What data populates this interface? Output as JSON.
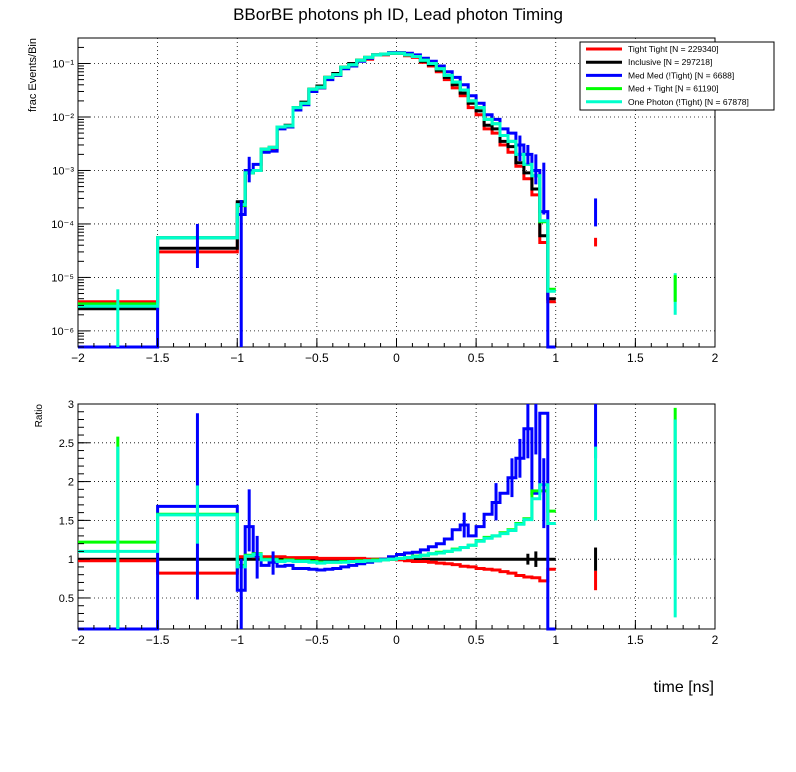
{
  "title": "BBorBE photons ph ID, Lead photon Timing",
  "xlabel": "time [ns]",
  "colors": {
    "tight_tight": "#ff0000",
    "inclusive": "#000000",
    "med_med": "#0000ff",
    "med_tight": "#00ff00",
    "one_photon": "#00ffcc"
  },
  "chart_data": [
    {
      "type": "line",
      "name": "top",
      "ylabel": "frac Events/Bin",
      "yscale": "log",
      "xlim": [
        -2,
        2
      ],
      "ylim": [
        5e-07,
        0.3
      ],
      "grid": true,
      "xticks": [
        "−2",
        "−1.5",
        "−1",
        "−0.5",
        "0",
        "0.5",
        "1",
        "1.5",
        "2"
      ],
      "yticks": [
        {
          "v": 1e-06,
          "label": "10⁻⁶"
        },
        {
          "v": 1e-05,
          "label": "10⁻⁵"
        },
        {
          "v": 0.0001,
          "label": "10⁻⁴"
        },
        {
          "v": 0.001,
          "label": "10⁻³"
        },
        {
          "v": 0.01,
          "label": "10⁻²"
        },
        {
          "v": 0.1,
          "label": "10⁻¹"
        }
      ],
      "legend_position": "top-right",
      "bin_edges": [
        -2,
        -1.5,
        -1,
        -0.95,
        -0.9,
        -0.85,
        -0.8,
        -0.75,
        -0.7,
        -0.65,
        -0.6,
        -0.55,
        -0.5,
        -0.45,
        -0.4,
        -0.35,
        -0.3,
        -0.25,
        -0.2,
        -0.15,
        -0.1,
        -0.05,
        0,
        0.05,
        0.1,
        0.15,
        0.2,
        0.25,
        0.3,
        0.35,
        0.4,
        0.45,
        0.5,
        0.55,
        0.6,
        0.65,
        0.7,
        0.75,
        0.8,
        0.85,
        0.9,
        0.95,
        1,
        1.5,
        2
      ],
      "series": [
        {
          "name": "Tight Tight [N = 229340]",
          "color": "#ff0000",
          "values": [
            3.5e-06,
            3e-05,
            0.00025,
            0.0009,
            0.001,
            0.0024,
            0.0025,
            0.0065,
            0.0065,
            0.015,
            0.018,
            0.033,
            0.035,
            0.055,
            0.06,
            0.085,
            0.09,
            0.115,
            0.12,
            0.145,
            0.145,
            0.155,
            0.155,
            0.14,
            0.13,
            0.105,
            0.09,
            0.07,
            0.05,
            0.035,
            0.025,
            0.015,
            0.011,
            0.006,
            0.005,
            0.003,
            0.0022,
            0.0012,
            0.0007,
            0.00035,
            4.5e-05,
            3.5e-06
          ]
        },
        {
          "name": "Inclusive [N = 297218]",
          "color": "#000000",
          "values": [
            2.6e-06,
            3.5e-05,
            0.00026,
            0.0009,
            0.001,
            0.0025,
            0.0027,
            0.0065,
            0.007,
            0.015,
            0.019,
            0.033,
            0.038,
            0.055,
            0.065,
            0.085,
            0.1,
            0.115,
            0.13,
            0.145,
            0.15,
            0.155,
            0.155,
            0.145,
            0.135,
            0.11,
            0.095,
            0.075,
            0.055,
            0.04,
            0.028,
            0.018,
            0.013,
            0.007,
            0.006,
            0.0035,
            0.0028,
            0.0014,
            0.0009,
            0.00045,
            6e-05,
            4e-06
          ]
        },
        {
          "name": "Med Med (!Tight) [N = 6688]",
          "color": "#0000ff",
          "values": [
            5e-07,
            5.5e-05,
            0.00015,
            0.001,
            0.0013,
            0.0022,
            0.0023,
            0.006,
            0.0065,
            0.0135,
            0.017,
            0.03,
            0.035,
            0.05,
            0.06,
            0.08,
            0.09,
            0.11,
            0.125,
            0.145,
            0.15,
            0.16,
            0.16,
            0.155,
            0.145,
            0.125,
            0.11,
            0.09,
            0.07,
            0.055,
            0.04,
            0.025,
            0.018,
            0.011,
            0.009,
            0.006,
            0.005,
            0.003,
            0.002,
            0.001,
            0.00017,
            5e-07
          ]
        },
        {
          "name": "Med + Tight [N = 61190]",
          "color": "#00ff00",
          "values": [
            3.2e-06,
            5.5e-05,
            0.00022,
            0.0009,
            0.001,
            0.0025,
            0.0027,
            0.0065,
            0.0068,
            0.015,
            0.018,
            0.033,
            0.036,
            0.055,
            0.062,
            0.085,
            0.095,
            0.115,
            0.13,
            0.145,
            0.15,
            0.155,
            0.155,
            0.145,
            0.135,
            0.115,
            0.1,
            0.08,
            0.06,
            0.045,
            0.032,
            0.02,
            0.015,
            0.009,
            0.0075,
            0.0045,
            0.0035,
            0.002,
            0.0013,
            0.0008,
            0.00011,
            6e-06
          ]
        },
        {
          "name": "One Photon (!Tight) [N = 67878]",
          "color": "#00ffcc",
          "values": [
            2.9e-06,
            5.5e-05,
            0.00023,
            0.0009,
            0.001,
            0.0025,
            0.0027,
            0.0065,
            0.0068,
            0.015,
            0.018,
            0.033,
            0.036,
            0.055,
            0.062,
            0.085,
            0.095,
            0.115,
            0.13,
            0.145,
            0.15,
            0.155,
            0.155,
            0.145,
            0.135,
            0.115,
            0.1,
            0.08,
            0.06,
            0.045,
            0.032,
            0.02,
            0.015,
            0.009,
            0.0075,
            0.0045,
            0.0035,
            0.002,
            0.0013,
            0.0008,
            0.000115,
            5.5e-06
          ]
        }
      ],
      "error_bars": [
        {
          "series": 2,
          "x": -1.25,
          "lo": 1.5e-05,
          "hi": 0.0001
        },
        {
          "series": 2,
          "x": -0.975,
          "lo": 5e-07,
          "hi": 0.00028
        },
        {
          "series": 2,
          "x": -0.925,
          "lo": 0.0006,
          "hi": 0.0018
        },
        {
          "series": 2,
          "x": 0.775,
          "lo": 0.0015,
          "hi": 0.0045
        },
        {
          "series": 2,
          "x": 0.825,
          "lo": 0.0013,
          "hi": 0.003
        },
        {
          "series": 2,
          "x": 0.875,
          "lo": 0.00055,
          "hi": 0.002
        },
        {
          "series": 2,
          "x": 0.925,
          "lo": 0.00015,
          "hi": 0.0014
        },
        {
          "series": 2,
          "x": 1.25,
          "lo": 9e-05,
          "hi": 0.0003
        },
        {
          "series": 0,
          "x": 1.25,
          "lo": 3.8e-05,
          "hi": 5.5e-05
        },
        {
          "series": 4,
          "x": -1.75,
          "lo": 5e-07,
          "hi": 6e-06
        },
        {
          "series": 4,
          "x": 1.75,
          "lo": 2e-06,
          "hi": 1.2e-05
        },
        {
          "series": 3,
          "x": 1.75,
          "lo": 3.5e-06,
          "hi": 1.1e-05
        }
      ]
    },
    {
      "type": "line",
      "name": "ratio",
      "ylabel": "Ratio",
      "yscale": "linear",
      "xlim": [
        -2,
        2
      ],
      "ylim": [
        0.1,
        3
      ],
      "grid": true,
      "xticks": [
        "−2",
        "−1.5",
        "−1",
        "−0.5",
        "0",
        "0.5",
        "1",
        "1.5",
        "2"
      ],
      "yticks": [
        {
          "v": 0.5,
          "label": "0.5"
        },
        {
          "v": 1,
          "label": "1"
        },
        {
          "v": 1.5,
          "label": "1.5"
        },
        {
          "v": 2,
          "label": "2"
        },
        {
          "v": 2.5,
          "label": "2.5"
        },
        {
          "v": 3,
          "label": "3"
        }
      ],
      "bin_edges": [
        -2,
        -1.5,
        -1,
        -0.95,
        -0.9,
        -0.85,
        -0.8,
        -0.75,
        -0.7,
        -0.65,
        -0.6,
        -0.55,
        -0.5,
        -0.45,
        -0.4,
        -0.35,
        -0.3,
        -0.25,
        -0.2,
        -0.15,
        -0.1,
        -0.05,
        0,
        0.05,
        0.1,
        0.15,
        0.2,
        0.25,
        0.3,
        0.35,
        0.4,
        0.45,
        0.5,
        0.55,
        0.6,
        0.65,
        0.7,
        0.75,
        0.8,
        0.85,
        0.9,
        0.95,
        1,
        1.5,
        2
      ],
      "series": [
        {
          "name": "Inclusive",
          "color": "#000000",
          "values": [
            1,
            1,
            1,
            1,
            1,
            1,
            1,
            1,
            1,
            1,
            1,
            1,
            1,
            1,
            1,
            1,
            1,
            1,
            1,
            1,
            1,
            1,
            1,
            1,
            1,
            1,
            1,
            1,
            1,
            1,
            1,
            1,
            1,
            1,
            1,
            1,
            1,
            1,
            1,
            1,
            1,
            1
          ]
        },
        {
          "name": "Tight Tight",
          "color": "#ff0000",
          "values": [
            0.98,
            0.82,
            1.03,
            1.04,
            1.03,
            1.03,
            1.03,
            1.03,
            1.02,
            1.02,
            1.02,
            1.02,
            1.01,
            1.01,
            1.01,
            1.01,
            1.01,
            1.01,
            1.0,
            1.0,
            1.0,
            1.0,
            0.99,
            0.98,
            0.97,
            0.97,
            0.96,
            0.95,
            0.94,
            0.93,
            0.91,
            0.9,
            0.88,
            0.87,
            0.86,
            0.84,
            0.82,
            0.79,
            0.77,
            0.76,
            0.72,
            0.87
          ]
        },
        {
          "name": "Med Med (!Tight)",
          "color": "#0000ff",
          "values": [
            0.1,
            1.68,
            0.6,
            1.42,
            1.04,
            0.92,
            0.96,
            0.91,
            0.92,
            0.88,
            0.88,
            0.87,
            0.86,
            0.87,
            0.88,
            0.9,
            0.92,
            0.94,
            0.96,
            0.98,
            1.0,
            1.03,
            1.06,
            1.08,
            1.09,
            1.12,
            1.16,
            1.2,
            1.26,
            1.38,
            1.44,
            1.3,
            1.42,
            1.58,
            1.73,
            1.85,
            2.05,
            2.3,
            2.68,
            1.85,
            2.88,
            0.1
          ]
        },
        {
          "name": "Med + Tight",
          "color": "#00ff00",
          "values": [
            1.22,
            1.58,
            0.92,
            1.05,
            1.07,
            1.0,
            1.0,
            0.98,
            0.99,
            0.98,
            0.98,
            0.97,
            0.96,
            0.96,
            0.96,
            0.97,
            0.97,
            0.98,
            0.98,
            0.99,
            0.99,
            1.0,
            1.01,
            1.02,
            1.04,
            1.05,
            1.07,
            1.09,
            1.1,
            1.13,
            1.15,
            1.18,
            1.24,
            1.28,
            1.3,
            1.34,
            1.38,
            1.46,
            1.52,
            1.88,
            1.88,
            1.62
          ]
        },
        {
          "name": "One Photon (!Tight)",
          "color": "#00ffcc",
          "values": [
            1.1,
            1.57,
            0.9,
            1.04,
            1.06,
            0.99,
            0.99,
            0.97,
            0.98,
            0.97,
            0.97,
            0.96,
            0.95,
            0.96,
            0.96,
            0.96,
            0.97,
            0.97,
            0.98,
            0.98,
            0.99,
            1.0,
            1.01,
            1.02,
            1.03,
            1.05,
            1.07,
            1.08,
            1.1,
            1.12,
            1.15,
            1.18,
            1.23,
            1.27,
            1.3,
            1.33,
            1.37,
            1.45,
            1.51,
            1.78,
            1.96,
            1.46
          ]
        }
      ],
      "error_bars": [
        {
          "series": 3,
          "x": -1.75,
          "lo": 0.1,
          "hi": 2.58
        },
        {
          "series": 4,
          "x": -1.75,
          "lo": 0.1,
          "hi": 2.45
        },
        {
          "series": 2,
          "x": -1.25,
          "lo": 0.48,
          "hi": 2.88
        },
        {
          "series": 4,
          "x": -1.25,
          "lo": 1.2,
          "hi": 1.95
        },
        {
          "series": 2,
          "x": -0.975,
          "lo": 0.1,
          "hi": 1.0
        },
        {
          "series": 2,
          "x": -0.925,
          "lo": 1.1,
          "hi": 1.9
        },
        {
          "series": 2,
          "x": -0.875,
          "lo": 0.75,
          "hi": 1.3
        },
        {
          "series": 2,
          "x": -0.775,
          "lo": 0.8,
          "hi": 1.1
        },
        {
          "series": 2,
          "x": 0.425,
          "lo": 1.28,
          "hi": 1.6
        },
        {
          "series": 2,
          "x": 0.625,
          "lo": 1.5,
          "hi": 1.98
        },
        {
          "series": 2,
          "x": 0.725,
          "lo": 1.8,
          "hi": 2.3
        },
        {
          "series": 2,
          "x": 0.775,
          "lo": 2.05,
          "hi": 2.55
        },
        {
          "series": 2,
          "x": 0.825,
          "lo": 2.3,
          "hi": 3.0
        },
        {
          "series": 2,
          "x": 0.875,
          "lo": 2.35,
          "hi": 3.0
        },
        {
          "series": 2,
          "x": 0.925,
          "lo": 1.4,
          "hi": 2.3
        },
        {
          "series": 2,
          "x": 1.25,
          "lo": 2.3,
          "hi": 3.0
        },
        {
          "series": 4,
          "x": 1.25,
          "lo": 1.5,
          "hi": 2.45
        },
        {
          "series": 3,
          "x": 1.75,
          "lo": 1.05,
          "hi": 2.95
        },
        {
          "series": 4,
          "x": 1.75,
          "lo": 0.25,
          "hi": 2.8
        },
        {
          "series": 0,
          "x": 1.25,
          "lo": 0.85,
          "hi": 1.15
        },
        {
          "series": 0,
          "x": 0.875,
          "lo": 0.9,
          "hi": 1.1
        },
        {
          "series": 0,
          "x": 0.825,
          "lo": 0.93,
          "hi": 1.07
        },
        {
          "series": 1,
          "x": 1.25,
          "lo": 0.6,
          "hi": 0.85
        }
      ]
    }
  ]
}
